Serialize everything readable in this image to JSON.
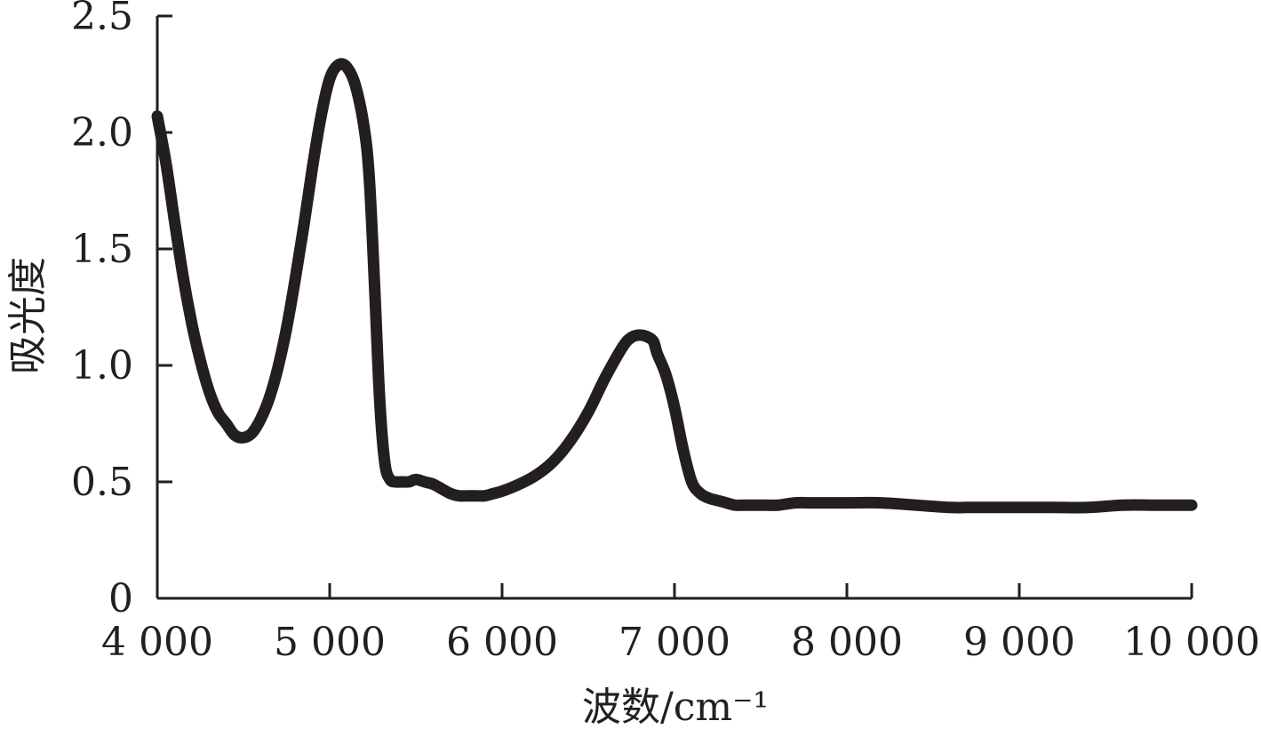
{
  "chart_data": {
    "type": "line",
    "title": "",
    "xlabel": "波数/cm⁻¹",
    "ylabel": "吸光度",
    "xlim": [
      4000,
      10000
    ],
    "ylim": [
      0,
      2.5
    ],
    "x_ticks": [
      4000,
      5000,
      6000,
      7000,
      8000,
      9000,
      10000
    ],
    "x_tick_labels": [
      "4 000",
      "5 000",
      "6 000",
      "7 000",
      "8 000",
      "9 000",
      "10 000"
    ],
    "y_ticks": [
      0,
      0.5,
      1.0,
      1.5,
      2.0,
      2.5
    ],
    "y_tick_labels": [
      "0",
      "0.5",
      "1.0",
      "1.5",
      "2.0",
      "2.5"
    ],
    "grid": false,
    "legend": "none",
    "color": "#231f20",
    "series": [
      {
        "x": [
          4000,
          4050,
          4100,
          4150,
          4200,
          4250,
          4300,
          4350,
          4400,
          4450,
          4500,
          4550,
          4600,
          4650,
          4700,
          4750,
          4800,
          4850,
          4900,
          4950,
          5000,
          5050,
          5100,
          5150,
          5200,
          5230,
          5260,
          5290,
          5320,
          5350,
          5380,
          5420,
          5460,
          5500,
          5550,
          5600,
          5650,
          5700,
          5750,
          5800,
          5850,
          5900,
          5950,
          6000,
          6100,
          6200,
          6300,
          6400,
          6500,
          6600,
          6700,
          6750,
          6800,
          6850,
          6880,
          6900,
          6950,
          7000,
          7050,
          7100,
          7150,
          7200,
          7250,
          7300,
          7350,
          7400,
          7500,
          7600,
          7700,
          7800,
          8000,
          8200,
          8400,
          8600,
          8700,
          8800,
          8900,
          9000,
          9200,
          9400,
          9600,
          9800,
          10000
        ],
        "y": [
          2.07,
          1.87,
          1.62,
          1.38,
          1.18,
          1.02,
          0.89,
          0.8,
          0.75,
          0.7,
          0.69,
          0.71,
          0.77,
          0.86,
          0.99,
          1.16,
          1.37,
          1.6,
          1.85,
          2.07,
          2.23,
          2.29,
          2.28,
          2.2,
          2.02,
          1.8,
          1.35,
          0.85,
          0.58,
          0.51,
          0.5,
          0.5,
          0.5,
          0.51,
          0.5,
          0.49,
          0.47,
          0.45,
          0.44,
          0.44,
          0.44,
          0.44,
          0.45,
          0.46,
          0.49,
          0.53,
          0.59,
          0.68,
          0.8,
          0.95,
          1.08,
          1.12,
          1.13,
          1.12,
          1.1,
          1.05,
          0.96,
          0.82,
          0.64,
          0.5,
          0.45,
          0.43,
          0.42,
          0.41,
          0.4,
          0.4,
          0.4,
          0.4,
          0.41,
          0.41,
          0.41,
          0.41,
          0.4,
          0.39,
          0.39,
          0.39,
          0.39,
          0.39,
          0.39,
          0.39,
          0.4,
          0.4,
          0.4
        ]
      }
    ]
  }
}
